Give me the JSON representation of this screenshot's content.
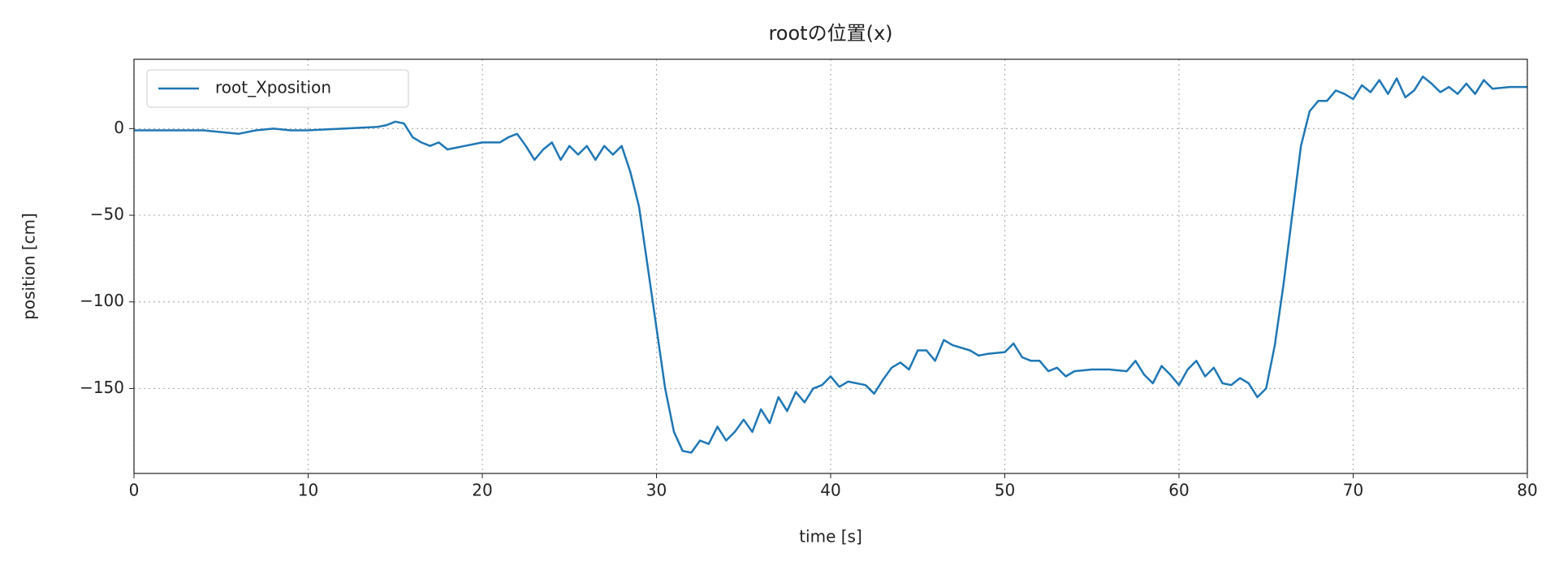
{
  "chart_data": {
    "type": "line",
    "title": "rootの位置(x)",
    "xlabel": "time [s]",
    "ylabel": "position [cm]",
    "xlim": [
      0,
      80
    ],
    "ylim": [
      -199,
      40
    ],
    "xticks": [
      0,
      10,
      20,
      30,
      40,
      50,
      60,
      70,
      80
    ],
    "yticks": [
      0,
      {
        "value": -50,
        "label": "−50"
      },
      {
        "value": -100,
        "label": "−100"
      },
      {
        "value": -150,
        "label": "−150"
      }
    ],
    "grid": true,
    "legend": "upper left",
    "series": [
      {
        "name": "root_Xposition",
        "color": "#1f77b4",
        "x": [
          0,
          2,
          4,
          6,
          7,
          8,
          9,
          10,
          12,
          14,
          14.5,
          15,
          15.5,
          16,
          16.5,
          17,
          17.5,
          18,
          19,
          20,
          21,
          21.5,
          22,
          22.5,
          23,
          23.5,
          24,
          24.5,
          25,
          25.5,
          26,
          26.5,
          27,
          27.5,
          28,
          28.5,
          29,
          29.5,
          30,
          30.5,
          31,
          31.5,
          32,
          32.5,
          33,
          33.5,
          34,
          34.5,
          35,
          35.5,
          36,
          36.5,
          37,
          37.5,
          38,
          38.5,
          39,
          39.5,
          40,
          40.5,
          41,
          42,
          42.5,
          43,
          43.5,
          44,
          44.5,
          45,
          45.5,
          46,
          46.5,
          47,
          48,
          48.5,
          49,
          50,
          50.5,
          51,
          51.5,
          52,
          52.5,
          53,
          53.5,
          54,
          55,
          56,
          57,
          57.5,
          58,
          58.5,
          59,
          59.5,
          60,
          60.5,
          61,
          61.5,
          62,
          62.5,
          63,
          63.5,
          64,
          64.5,
          65,
          65.5,
          66,
          66.5,
          67,
          67.5,
          68,
          68.5,
          69,
          69.5,
          70,
          70.5,
          71,
          71.5,
          72,
          72.5,
          73,
          73.5,
          74,
          74.5,
          75,
          75.5,
          76,
          76.5,
          77,
          77.5,
          78,
          79,
          80
        ],
        "values": [
          -1,
          -1,
          -1,
          -3,
          -1,
          0,
          -1,
          -1,
          0,
          1,
          2,
          4,
          3,
          -5,
          -8,
          -10,
          -8,
          -12,
          -10,
          -8,
          -8,
          -5,
          -3,
          -10,
          -18,
          -12,
          -8,
          -18,
          -10,
          -15,
          -10,
          -18,
          -10,
          -15,
          -10,
          -25,
          -45,
          -80,
          -115,
          -150,
          -175,
          -186,
          -187,
          -180,
          -182,
          -172,
          -180,
          -175,
          -168,
          -175,
          -162,
          -170,
          -155,
          -163,
          -152,
          -158,
          -150,
          -148,
          -143,
          -149,
          -146,
          -148,
          -153,
          -145,
          -138,
          -135,
          -139,
          -128,
          -128,
          -134,
          -122,
          -125,
          -128,
          -131,
          -130,
          -129,
          -124,
          -132,
          -134,
          -134,
          -140,
          -138,
          -143,
          -140,
          -139,
          -139,
          -140,
          -134,
          -142,
          -147,
          -137,
          -142,
          -148,
          -139,
          -134,
          -143,
          -138,
          -147,
          -148,
          -144,
          -147,
          -155,
          -150,
          -125,
          -90,
          -50,
          -10,
          10,
          16,
          16,
          22,
          20,
          17,
          25,
          21,
          28,
          20,
          29,
          18,
          22,
          30,
          26,
          21,
          24,
          20,
          26,
          20,
          28,
          23,
          24,
          24
        ]
      }
    ]
  }
}
